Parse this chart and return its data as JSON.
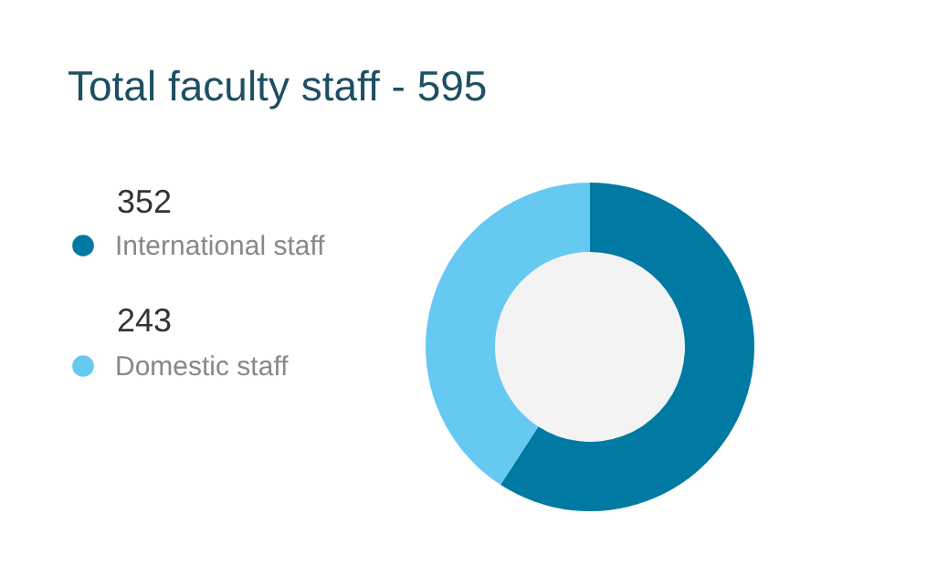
{
  "chart_data": {
    "type": "donut",
    "title": "Total faculty staff - 595",
    "categories": [
      "International staff",
      "Domestic staff"
    ],
    "values": [
      352,
      243
    ],
    "colors": [
      "#007aa3",
      "#66c9f2"
    ],
    "legend": "left",
    "data_labels": true
  }
}
